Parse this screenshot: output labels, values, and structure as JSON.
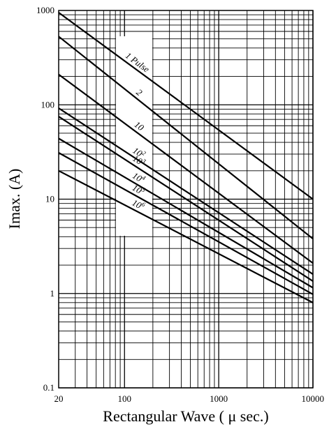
{
  "chart_data": {
    "type": "line",
    "title": "",
    "xlabel": "Rectangular Wave ( μ sec.)",
    "ylabel": "Imax. (A)",
    "x_scale": "log",
    "y_scale": "log",
    "xlim": [
      20,
      10000
    ],
    "ylim": [
      0.1,
      1000
    ],
    "grid": true,
    "x_ticks": [
      {
        "value": 20,
        "label": "20"
      },
      {
        "value": 100,
        "label": "100"
      },
      {
        "value": 1000,
        "label": "1000"
      },
      {
        "value": 10000,
        "label": "10000"
      }
    ],
    "y_ticks": [
      {
        "value": 0.1,
        "label": "0.1"
      },
      {
        "value": 1,
        "label": "1"
      },
      {
        "value": 10,
        "label": "10"
      },
      {
        "value": 100,
        "label": "100"
      },
      {
        "value": 1000,
        "label": "1000"
      }
    ],
    "series": [
      {
        "name": "1 Pulse",
        "label_base": "1 Pulse",
        "label_sup": "",
        "x": [
          20,
          10000
        ],
        "y": [
          950,
          10
        ]
      },
      {
        "name": "2",
        "label_base": "2",
        "label_sup": "",
        "x": [
          20,
          10000
        ],
        "y": [
          530,
          3.8
        ]
      },
      {
        "name": "10",
        "label_base": "10",
        "label_sup": "",
        "x": [
          20,
          10000
        ],
        "y": [
          210,
          2.1
        ]
      },
      {
        "name": "10²",
        "label_base": "10",
        "label_sup": "2",
        "x": [
          20,
          10000
        ],
        "y": [
          92,
          1.6
        ]
      },
      {
        "name": "10³",
        "label_base": "10",
        "label_sup": "3",
        "x": [
          20,
          10000
        ],
        "y": [
          75,
          1.35
        ]
      },
      {
        "name": "10⁴",
        "label_base": "10",
        "label_sup": "4",
        "x": [
          20,
          10000
        ],
        "y": [
          44,
          1.15
        ]
      },
      {
        "name": "10⁵",
        "label_base": "10",
        "label_sup": "5",
        "x": [
          20,
          10000
        ],
        "y": [
          31,
          0.98
        ]
      },
      {
        "name": "10⁶",
        "label_base": "10",
        "label_sup": "6",
        "x": [
          20,
          10000
        ],
        "y": [
          20,
          0.8
        ]
      }
    ]
  }
}
